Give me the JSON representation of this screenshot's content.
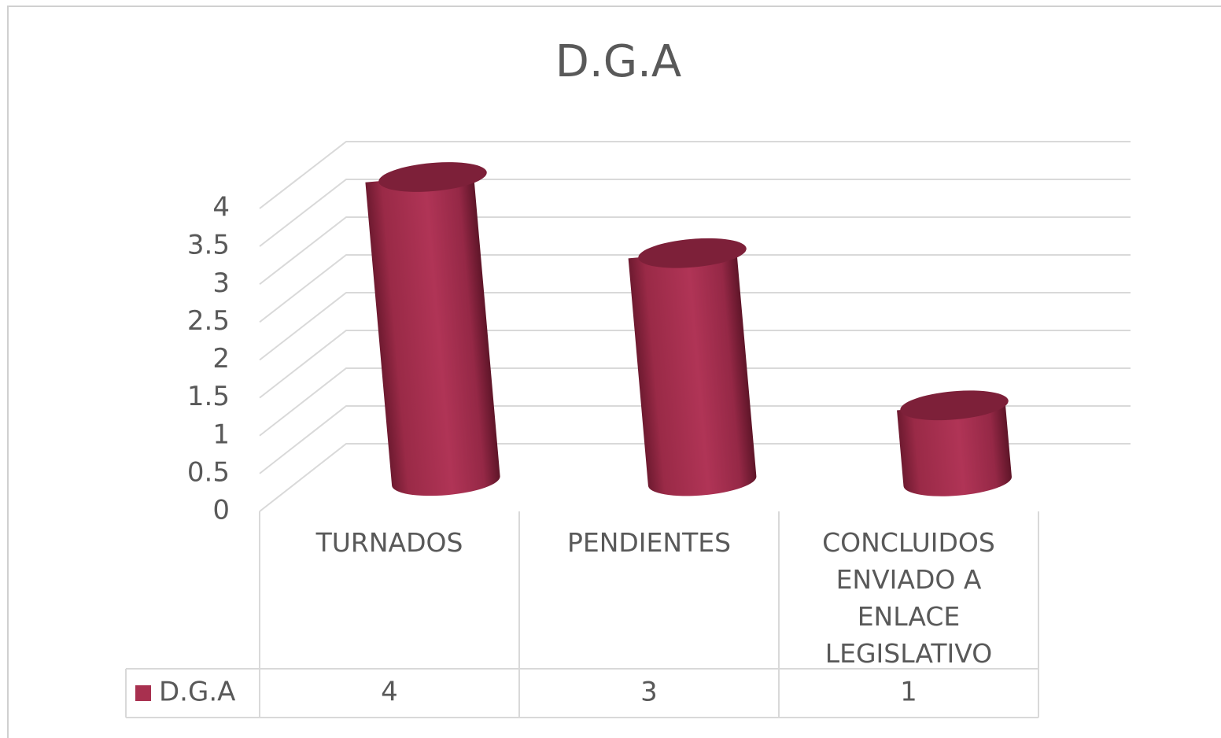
{
  "chart_data": {
    "type": "bar3d",
    "title": "D.G.A",
    "categories": [
      "TURNADOS",
      "PENDIENTES",
      "CONCLUIDOS ENVIADO A ENLACE LEGISLATIVO"
    ],
    "series": [
      {
        "name": "D.G.A",
        "color": "#a8304f",
        "values": [
          4,
          3,
          1
        ]
      }
    ],
    "ylim": [
      0,
      4
    ],
    "yticks": [
      0,
      0.5,
      1,
      1.5,
      2,
      2.5,
      3,
      3.5,
      4
    ],
    "grid": true,
    "data_table": true
  }
}
